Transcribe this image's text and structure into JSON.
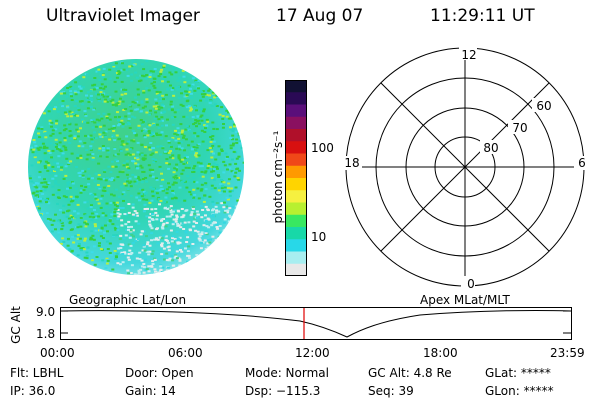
{
  "header": {
    "instrument": "Ultraviolet Imager",
    "date": "17 Aug 07",
    "time": "11:29:11 UT"
  },
  "colorbar": {
    "unit_label": "photon cm⁻²s⁻¹",
    "tick_labels": [
      "100",
      "10"
    ],
    "colors": [
      "#111133",
      "#2a0a55",
      "#5a0f7a",
      "#8a1060",
      "#b0102a",
      "#d81010",
      "#f04818",
      "#ff9a00",
      "#ffd400",
      "#f6f040",
      "#b8f030",
      "#38e860",
      "#18d8a8",
      "#28d8e8",
      "#a8eef0",
      "#e8e8e8"
    ]
  },
  "polar_grid": {
    "ring_labels": [
      "60",
      "70",
      "80"
    ],
    "mlt_labels": {
      "top": "12",
      "bottom": "0",
      "left": "18",
      "right": "6"
    }
  },
  "timeline": {
    "left_title": "Geographic Lat/Lon",
    "right_title": "Apex MLat/MLT",
    "y_axis_title": "GC Alt",
    "y_ticks": [
      "9.0",
      "1.8"
    ],
    "x_ticks": [
      "00:00",
      "06:00",
      "12:00",
      "18:00",
      "23:59"
    ],
    "current_time_marker_color": "#e00000"
  },
  "info": {
    "filter": "Flt: LBHL",
    "ip": "IP: 36.0",
    "door": "Door: Open",
    "gain": "Gain: 14",
    "mode": "Mode: Normal",
    "dsp": "Dsp: −115.3",
    "gc_alt": "GC Alt: 4.8 Re",
    "seq": "Seq: 39",
    "glat": "GLat: *****",
    "glon": "GLon: *****"
  }
}
